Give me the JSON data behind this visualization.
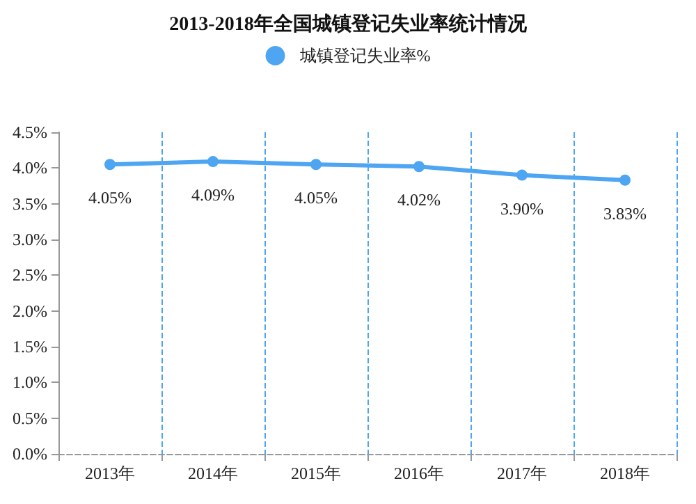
{
  "chart_data": {
    "type": "line",
    "title": "2013-2018年全国城镇登记失业率统计情况",
    "categories": [
      "2013年",
      "2014年",
      "2015年",
      "2016年",
      "2017年",
      "2018年"
    ],
    "series": [
      {
        "name": "城镇登记失业率%",
        "color": "#4ea5f2",
        "values": [
          4.05,
          4.09,
          4.05,
          4.02,
          3.9,
          3.83
        ],
        "value_labels": [
          "4.05%",
          "4.09%",
          "4.05%",
          "4.02%",
          "3.90%",
          "3.83%"
        ]
      }
    ],
    "ylim": [
      0,
      4.5
    ],
    "yticks": [
      {
        "value": 0,
        "label": "0.0%"
      },
      {
        "value": 0.5,
        "label": "0.5%"
      },
      {
        "value": 1,
        "label": "1.0%"
      },
      {
        "value": 1.5,
        "label": "1.5%"
      },
      {
        "value": 2,
        "label": "2.0%"
      },
      {
        "value": 2.5,
        "label": "2.5%"
      },
      {
        "value": 3,
        "label": "3.0%"
      },
      {
        "value": 3.5,
        "label": "3.5%"
      },
      {
        "value": 4,
        "label": "4.0%"
      },
      {
        "value": 4.5,
        "label": "4.5%"
      }
    ],
    "grid": "x",
    "legend": "top",
    "marker": "circle",
    "line_style": "solid"
  }
}
